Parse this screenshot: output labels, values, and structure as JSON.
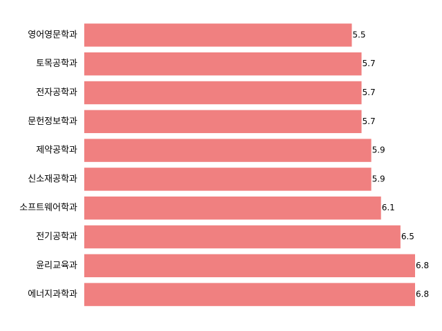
{
  "chart_data": {
    "type": "barh",
    "categories": [
      "영어영문학과",
      "토목공학과",
      "전자공학과",
      "문헌정보학과",
      "제약공학과",
      "신소재공학과",
      "소프트웨어학과",
      "전기공학과",
      "윤리교육과",
      "에너지과학과"
    ],
    "values": [
      5.5,
      5.7,
      5.7,
      5.7,
      5.9,
      5.9,
      6.1,
      6.5,
      6.8,
      6.8
    ],
    "color": "#f08080",
    "xlim": [
      0,
      6.8
    ]
  }
}
